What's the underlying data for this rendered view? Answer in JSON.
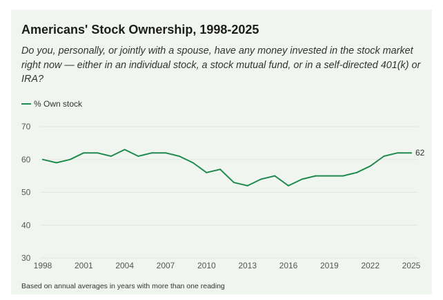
{
  "title": "Americans' Stock Ownership, 1998-2025",
  "subtitle": "Do you, personally, or jointly with a spouse, have any money invested in the stock market right now — either in an individual stock, a stock mutual fund, or in a self-directed 401(k) or IRA?",
  "footnote": "Based on annual averages in years with more than one reading",
  "colors": {
    "line": "#1e8a4f",
    "grid": "#e2e6df",
    "background": "#f1f5ef"
  },
  "chart_data": {
    "type": "line",
    "x": [
      1998,
      1999,
      2000,
      2001,
      2002,
      2003,
      2004,
      2005,
      2006,
      2007,
      2008,
      2009,
      2010,
      2011,
      2012,
      2013,
      2014,
      2015,
      2016,
      2017,
      2018,
      2019,
      2020,
      2021,
      2022,
      2023,
      2024,
      2025
    ],
    "series": [
      {
        "name": "% Own stock",
        "values": [
          60,
          59,
          60,
          62,
          62,
          61,
          63,
          61,
          62,
          62,
          61,
          59,
          56,
          57,
          53,
          52,
          54,
          55,
          52,
          54,
          55,
          55,
          55,
          56,
          58,
          61,
          62,
          62
        ]
      }
    ],
    "ylim": [
      30,
      70
    ],
    "yticks": [
      30,
      40,
      50,
      60,
      70
    ],
    "xticks": [
      1998,
      2001,
      2004,
      2007,
      2010,
      2013,
      2016,
      2019,
      2022,
      2025
    ],
    "end_label": "62",
    "grid": true,
    "legend_position": "top-left"
  }
}
